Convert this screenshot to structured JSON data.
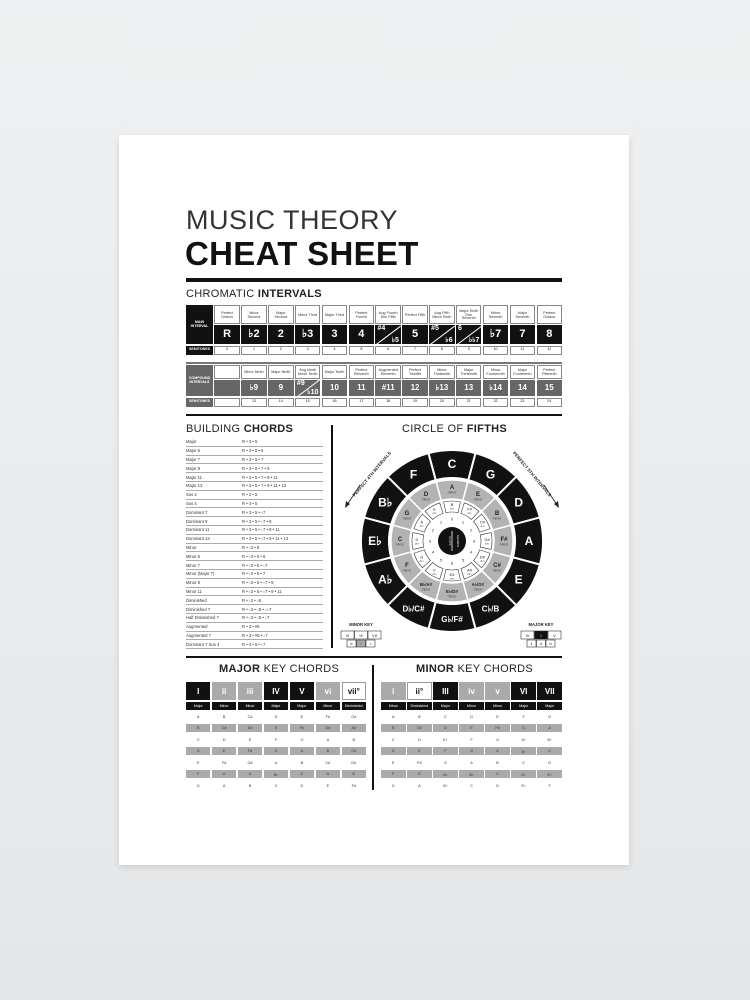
{
  "title": {
    "line1": "MUSIC THEORY",
    "line2": "CHEAT SHEET"
  },
  "intervals": {
    "heading_light": "CHROMATIC ",
    "heading_bold": "INTERVALS",
    "main_label": "MAIN INTERVAL",
    "semitones_label": "SEMITONES",
    "compound_label": "COMPOUND INTERVALS",
    "main": [
      {
        "name": "Perfect Unison",
        "sym": "R",
        "semi": "0"
      },
      {
        "name": "Minor Second",
        "sym": "♭2",
        "semi": "1"
      },
      {
        "name": "Major Second",
        "sym": "2",
        "semi": "2"
      },
      {
        "name": "Minor Third",
        "sym": "♭3",
        "semi": "3"
      },
      {
        "name": "Major Third",
        "sym": "3",
        "semi": "4"
      },
      {
        "name": "Perfect Fourth",
        "sym": "4",
        "semi": "5"
      },
      {
        "name": "Aug Fourth Dim Fifth",
        "sym": "#4",
        "sym2": "♭5",
        "semi": "6"
      },
      {
        "name": "Perfect Fifth",
        "sym": "5",
        "semi": "7"
      },
      {
        "name": "Aug Fifth Minor Sixth",
        "sym": "#5",
        "sym2": "♭6",
        "semi": "8"
      },
      {
        "name": "Major Sixth Dim Seventh",
        "sym": "6",
        "sym2": "♭♭7",
        "semi": "9"
      },
      {
        "name": "Minor Seventh",
        "sym": "♭7",
        "semi": "10"
      },
      {
        "name": "Major Seventh",
        "sym": "7",
        "semi": "11"
      },
      {
        "name": "Perfect Octave",
        "sym": "8",
        "semi": "12"
      }
    ],
    "compound": [
      {
        "name": "",
        "sym": "",
        "semi": ""
      },
      {
        "name": "Minor Ninth",
        "sym": "♭9",
        "semi": "13"
      },
      {
        "name": "Major Ninth",
        "sym": "9",
        "semi": "14"
      },
      {
        "name": "Aug Ninth Minor Tenth",
        "sym": "#9",
        "sym2": "♭10",
        "semi": "15"
      },
      {
        "name": "Major Tenth",
        "sym": "10",
        "semi": "16"
      },
      {
        "name": "Perfect Eleventh",
        "sym": "11",
        "semi": "17"
      },
      {
        "name": "Augmented Eleventh",
        "sym": "#11",
        "semi": "18"
      },
      {
        "name": "Perfect Twelfth",
        "sym": "12",
        "semi": "19"
      },
      {
        "name": "Minor Thirteenth",
        "sym": "♭13",
        "semi": "20"
      },
      {
        "name": "Major Thirteenth",
        "sym": "13",
        "semi": "21"
      },
      {
        "name": "Minor Fourteenth",
        "sym": "♭14",
        "semi": "22"
      },
      {
        "name": "Major Fourteenth",
        "sym": "14",
        "semi": "23"
      },
      {
        "name": "Perfect Fifteenth",
        "sym": "15",
        "semi": "24"
      }
    ]
  },
  "chords": {
    "heading_light": "BUILDING ",
    "heading_bold": "CHORDS",
    "rows": [
      [
        "Major",
        "R • 3 • 5"
      ],
      [
        "Major 6",
        "R • 3 • 5 • 6"
      ],
      [
        "Major 7",
        "R • 3 • 5 • 7"
      ],
      [
        "Major 9",
        "R • 3 • 5 • 7 • 9"
      ],
      [
        "Major 11",
        "R • 3 • 5 • 7 • 9 • 11"
      ],
      [
        "Major 13",
        "R • 3 • 5 • 7 • 9 • 11 • 13"
      ],
      [
        "Sus 2",
        "R • 2 • 5"
      ],
      [
        "Sus 4",
        "R • 4 • 5"
      ],
      [
        "Dominant 7",
        "R • 3 • 5 • ♭7"
      ],
      [
        "Dominant 9",
        "R • 3 • 5 • ♭7 • 9"
      ],
      [
        "Dominant 11",
        "R • 3 • 5 • ♭7 • 9 • 11"
      ],
      [
        "Dominant 13",
        "R • 3 • 5 • ♭7 • 9 • 11 • 13"
      ],
      [
        "Minor",
        "R • ♭3 • 5"
      ],
      [
        "Minor 6",
        "R • ♭3 • 5 • 6"
      ],
      [
        "Minor 7",
        "R • ♭3 • 5 • ♭7"
      ],
      [
        "Minor (Major 7)",
        "R • ♭3 • 5 • 7"
      ],
      [
        "Minor 9",
        "R • ♭3 • 5 • ♭7 • 9"
      ],
      [
        "Minor 11",
        "R • ♭3 • 5 • ♭7 • 9 • 11"
      ],
      [
        "Diminished",
        "R • ♭3 • ♭5"
      ],
      [
        "Diminished 7",
        "R • ♭3 • ♭5 • ♭♭7"
      ],
      [
        "Half Diminished 7",
        "R • ♭3 • ♭5 • ♭7"
      ],
      [
        "Augmented",
        "R • 3 • #5"
      ],
      [
        "Augmented 7",
        "R • 3 • #5 • ♭7"
      ],
      [
        "Dominant 7 Sus 4",
        "R • 4 • 5 • ♭7"
      ]
    ]
  },
  "circle": {
    "heading_light": "CIRCLE OF ",
    "heading_bold": "FIFTHS",
    "left_arrow": "PERFECT 4TH INTERVALS",
    "right_arrow": "PERFECT 5TH INTERVALS",
    "major": [
      "C",
      "G",
      "D",
      "A",
      "E",
      "C♭/B",
      "G♭/F#",
      "D♭/C#",
      "A♭",
      "E♭",
      "B♭",
      "F"
    ],
    "minor": [
      "A",
      "E",
      "B",
      "F#",
      "C#",
      "A♭/G#",
      "E♭/D#",
      "B♭/A#",
      "F",
      "C",
      "G",
      "D"
    ],
    "minor_word": "minor",
    "dim": [
      "B",
      "F#",
      "C#",
      "G#",
      "D#",
      "A#",
      "E#",
      "C",
      "G",
      "D",
      "A",
      "E"
    ],
    "dim_word": "dim",
    "counts": [
      "0",
      "1",
      "2",
      "3",
      "4",
      "5",
      "6",
      "5",
      "4",
      "3",
      "2",
      "1"
    ],
    "center_left": "FLATS",
    "center_right": "SHARPS",
    "minor_key_label": "MINOR KEY",
    "minor_key_top": [
      "VI",
      "III",
      "VII"
    ],
    "minor_key_bottom": [
      "iv",
      "i",
      "v"
    ],
    "major_key_label": "MAJOR KEY",
    "major_key_top": [
      "IV",
      "I",
      "V"
    ],
    "major_key_bottom": [
      "ii",
      "vi",
      "iii"
    ],
    "colors": {
      "major": "#111111",
      "minor": "#b3b3b3",
      "dim": "#ffffff"
    }
  },
  "major_keys": {
    "heading_bold": "MAJOR",
    "heading_light": " KEY CHORDS",
    "numerals": [
      "I",
      "ii",
      "iii",
      "IV",
      "V",
      "vi",
      "vii°"
    ],
    "styles": [
      "b",
      "g",
      "g",
      "b",
      "b",
      "g",
      "w"
    ],
    "qualities": [
      "Major",
      "Minor",
      "Minor",
      "Major",
      "Major",
      "Minor",
      "Diminished"
    ],
    "rows": [
      [
        "A",
        "B",
        "C#",
        "D",
        "E",
        "F#",
        "G#"
      ],
      [
        "B",
        "C#",
        "D#",
        "E",
        "F#",
        "G#",
        "A#"
      ],
      [
        "C",
        "D",
        "E",
        "F",
        "G",
        "A",
        "B"
      ],
      [
        "D",
        "E",
        "F#",
        "G",
        "A",
        "B",
        "C#"
      ],
      [
        "E",
        "F#",
        "G#",
        "A",
        "B",
        "C#",
        "D#"
      ],
      [
        "F",
        "G",
        "A",
        "B♭",
        "C",
        "D",
        "E"
      ],
      [
        "G",
        "A",
        "B",
        "C",
        "D",
        "E",
        "F#"
      ]
    ]
  },
  "minor_keys": {
    "heading_bold": "MINOR",
    "heading_light": " KEY CHORDS",
    "numerals": [
      "i",
      "ii°",
      "III",
      "iv",
      "v",
      "VI",
      "VII"
    ],
    "styles": [
      "g",
      "w",
      "b",
      "g",
      "g",
      "b",
      "b"
    ],
    "qualities": [
      "Minor",
      "Diminished",
      "Major",
      "Minor",
      "Minor",
      "Major",
      "Major"
    ],
    "rows": [
      [
        "A",
        "B",
        "C",
        "D",
        "E",
        "F",
        "G"
      ],
      [
        "B",
        "C#",
        "D",
        "E",
        "F#",
        "G",
        "A"
      ],
      [
        "C",
        "D",
        "E♭",
        "F",
        "G",
        "A♭",
        "B♭"
      ],
      [
        "D",
        "E",
        "F",
        "G",
        "A",
        "B♭",
        "C"
      ],
      [
        "E",
        "F#",
        "G",
        "A",
        "B",
        "C",
        "D"
      ],
      [
        "F",
        "G",
        "A♭",
        "B♭",
        "C",
        "D♭",
        "E♭"
      ],
      [
        "G",
        "A",
        "B♭",
        "C",
        "D",
        "E♭",
        "F"
      ]
    ]
  }
}
